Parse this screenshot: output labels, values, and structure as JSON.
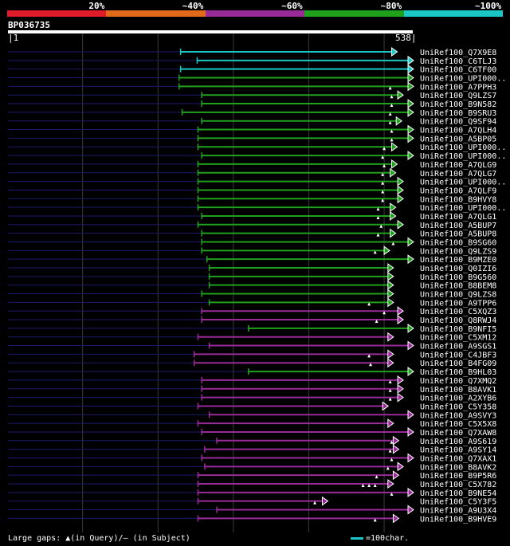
{
  "legend": {
    "segments": [
      {
        "color": "#e01b2a",
        "label": "20%"
      },
      {
        "color": "#e06a1a",
        "label": "~40%"
      },
      {
        "color": "#992b99",
        "label": "~60%"
      },
      {
        "color": "#21a01e",
        "label": "~80%"
      },
      {
        "color": "#1ac6c6",
        "label": "~100%"
      }
    ]
  },
  "query": {
    "id": "BP036735",
    "start": "1",
    "end": "538"
  },
  "footer": {
    "left": "Large gaps: ▲(in Query)/– (in Subject)",
    "right": "=100char."
  },
  "chart_data": {
    "type": "alignment_map",
    "query_length": 538,
    "colors": {
      "~100%": "#1ac6c6",
      "~80%": "#21a01e",
      "~60%": "#992b99",
      "~40%": "#e06a1a",
      "20%": "#e01b2a"
    },
    "hits": [
      {
        "name": "UniRef100_Q7X9E8",
        "cls": "~100%",
        "start": 230,
        "end": 510,
        "marks": []
      },
      {
        "name": "UniRef100_C6TLJ3",
        "cls": "~100%",
        "start": 252,
        "end": 538,
        "marks": []
      },
      {
        "name": "UniRef100_C6TF00",
        "cls": "~100%",
        "start": 230,
        "end": 538,
        "marks": []
      },
      {
        "name": "UniRef100_UPI000..",
        "cls": "~80%",
        "start": 228,
        "end": 538,
        "marks": []
      },
      {
        "name": "UniRef100_A7PPH3",
        "cls": "~80%",
        "start": 228,
        "end": 538,
        "marks": [
          508
        ]
      },
      {
        "name": "UniRef100_Q9LZS7",
        "cls": "~80%",
        "start": 258,
        "end": 518,
        "marks": [
          510
        ]
      },
      {
        "name": "UniRef100_B9N582",
        "cls": "~80%",
        "start": 258,
        "end": 538,
        "marks": [
          510
        ]
      },
      {
        "name": "UniRef100_B9SRU3",
        "cls": "~80%",
        "start": 232,
        "end": 538,
        "marks": [
          508
        ]
      },
      {
        "name": "UniRef100_Q9SF94",
        "cls": "~80%",
        "start": 258,
        "end": 516,
        "marks": [
          508
        ]
      },
      {
        "name": "UniRef100_A7QLH4",
        "cls": "~80%",
        "start": 253,
        "end": 538,
        "marks": [
          510
        ]
      },
      {
        "name": "UniRef100_A5BP05",
        "cls": "~80%",
        "start": 253,
        "end": 538,
        "marks": [
          510
        ]
      },
      {
        "name": "UniRef100_UPI000..",
        "cls": "~80%",
        "start": 253,
        "end": 510,
        "marks": [
          500
        ]
      },
      {
        "name": "UniRef100_UPI000..",
        "cls": "~80%",
        "start": 258,
        "end": 538,
        "marks": [
          498
        ]
      },
      {
        "name": "UniRef100_A7QLG9",
        "cls": "~80%",
        "start": 253,
        "end": 510,
        "marks": [
          500
        ]
      },
      {
        "name": "UniRef100_A7QLG7",
        "cls": "~80%",
        "start": 253,
        "end": 508,
        "marks": [
          498
        ]
      },
      {
        "name": "UniRef100_UPI000..",
        "cls": "~80%",
        "start": 253,
        "end": 518,
        "marks": [
          498
        ]
      },
      {
        "name": "UniRef100_A7QLF9",
        "cls": "~80%",
        "start": 253,
        "end": 518,
        "marks": [
          498
        ]
      },
      {
        "name": "UniRef100_B9HVY8",
        "cls": "~80%",
        "start": 253,
        "end": 518,
        "marks": [
          498
        ]
      },
      {
        "name": "UniRef100_UPI000..",
        "cls": "~80%",
        "start": 253,
        "end": 508,
        "marks": [
          492
        ]
      },
      {
        "name": "UniRef100_A7QLG1",
        "cls": "~80%",
        "start": 258,
        "end": 508,
        "marks": [
          492
        ]
      },
      {
        "name": "UniRef100_A5BUP7",
        "cls": "~80%",
        "start": 253,
        "end": 518,
        "marks": [
          496
        ]
      },
      {
        "name": "UniRef100_A5BUP8",
        "cls": "~80%",
        "start": 258,
        "end": 508,
        "marks": [
          492
        ]
      },
      {
        "name": "UniRef100_B9SG60",
        "cls": "~80%",
        "start": 258,
        "end": 538,
        "marks": [
          512
        ]
      },
      {
        "name": "UniRef100_Q9LZS9",
        "cls": "~80%",
        "start": 258,
        "end": 500,
        "marks": [
          488
        ]
      },
      {
        "name": "UniRef100_B9MZE0",
        "cls": "~80%",
        "start": 265,
        "end": 538,
        "marks": []
      },
      {
        "name": "UniRef100_Q0IZI6",
        "cls": "~80%",
        "start": 268,
        "end": 505,
        "marks": []
      },
      {
        "name": "UniRef100_B9G560",
        "cls": "~80%",
        "start": 268,
        "end": 505,
        "marks": []
      },
      {
        "name": "UniRef100_B8BEM8",
        "cls": "~80%",
        "start": 268,
        "end": 505,
        "marks": []
      },
      {
        "name": "UniRef100_Q9LZS8",
        "cls": "~80%",
        "start": 258,
        "end": 505,
        "marks": []
      },
      {
        "name": "UniRef100_A9TPP6",
        "cls": "~80%",
        "start": 268,
        "end": 505,
        "marks": [
          480
        ]
      },
      {
        "name": "UniRef100_C5XQZ3",
        "cls": "~60%",
        "start": 258,
        "end": 518,
        "marks": [
          500
        ]
      },
      {
        "name": "UniRef100_Q8RWJ4",
        "cls": "~60%",
        "start": 258,
        "end": 518,
        "marks": [
          490
        ]
      },
      {
        "name": "UniRef100_B9NFI5",
        "cls": "~80%",
        "start": 320,
        "end": 538,
        "marks": []
      },
      {
        "name": "UniRef100_C5XM12",
        "cls": "~60%",
        "start": 253,
        "end": 505,
        "marks": []
      },
      {
        "name": "UniRef100_A9SGS1",
        "cls": "~60%",
        "start": 268,
        "end": 538,
        "marks": []
      },
      {
        "name": "UniRef100_C4JBF3",
        "cls": "~60%",
        "start": 248,
        "end": 505,
        "marks": [
          480
        ]
      },
      {
        "name": "UniRef100_B4FG09",
        "cls": "~60%",
        "start": 248,
        "end": 505,
        "marks": [
          482
        ]
      },
      {
        "name": "UniRef100_B9HL03",
        "cls": "~80%",
        "start": 320,
        "end": 538,
        "marks": []
      },
      {
        "name": "UniRef100_Q7XMQ2",
        "cls": "~60%",
        "start": 258,
        "end": 518,
        "marks": [
          508
        ]
      },
      {
        "name": "UniRef100_B8AVK1",
        "cls": "~60%",
        "start": 258,
        "end": 518,
        "marks": [
          508
        ]
      },
      {
        "name": "UniRef100_A2XYB6",
        "cls": "~60%",
        "start": 258,
        "end": 518,
        "marks": [
          508
        ]
      },
      {
        "name": "UniRef100_C5Y358",
        "cls": "~60%",
        "start": 253,
        "end": 498,
        "marks": []
      },
      {
        "name": "UniRef100_A9SVY3",
        "cls": "~60%",
        "start": 268,
        "end": 538,
        "marks": []
      },
      {
        "name": "UniRef100_C5X5X8",
        "cls": "~60%",
        "start": 253,
        "end": 505,
        "marks": []
      },
      {
        "name": "UniRef100_Q7XAW8",
        "cls": "~60%",
        "start": 258,
        "end": 538,
        "marks": []
      },
      {
        "name": "UniRef100_A9S619",
        "cls": "~60%",
        "start": 278,
        "end": 512,
        "marks": [
          510
        ]
      },
      {
        "name": "UniRef100_A9SY14",
        "cls": "~60%",
        "start": 262,
        "end": 512,
        "marks": [
          508
        ]
      },
      {
        "name": "UniRef100_Q7XAX1",
        "cls": "~60%",
        "start": 258,
        "end": 538,
        "marks": [
          510
        ]
      },
      {
        "name": "UniRef100_B8AVK2",
        "cls": "~60%",
        "start": 262,
        "end": 518,
        "marks": [
          505
        ]
      },
      {
        "name": "UniRef100_B9P5R6",
        "cls": "~60%",
        "start": 253,
        "end": 512,
        "marks": [
          490
        ]
      },
      {
        "name": "UniRef100_C5X782",
        "cls": "~60%",
        "start": 253,
        "end": 505,
        "marks": [
          472,
          480,
          488
        ]
      },
      {
        "name": "UniRef100_B9NE54",
        "cls": "~60%",
        "start": 253,
        "end": 538,
        "marks": [
          510
        ]
      },
      {
        "name": "UniRef100_C5Y3F5",
        "cls": "~60%",
        "start": 253,
        "end": 418,
        "marks": [
          408
        ]
      },
      {
        "name": "UniRef100_A9U3X4",
        "cls": "~60%",
        "start": 278,
        "end": 538,
        "marks": []
      },
      {
        "name": "UniRef100_B9HVE9",
        "cls": "~60%",
        "start": 253,
        "end": 512,
        "marks": [
          488
        ]
      }
    ]
  }
}
